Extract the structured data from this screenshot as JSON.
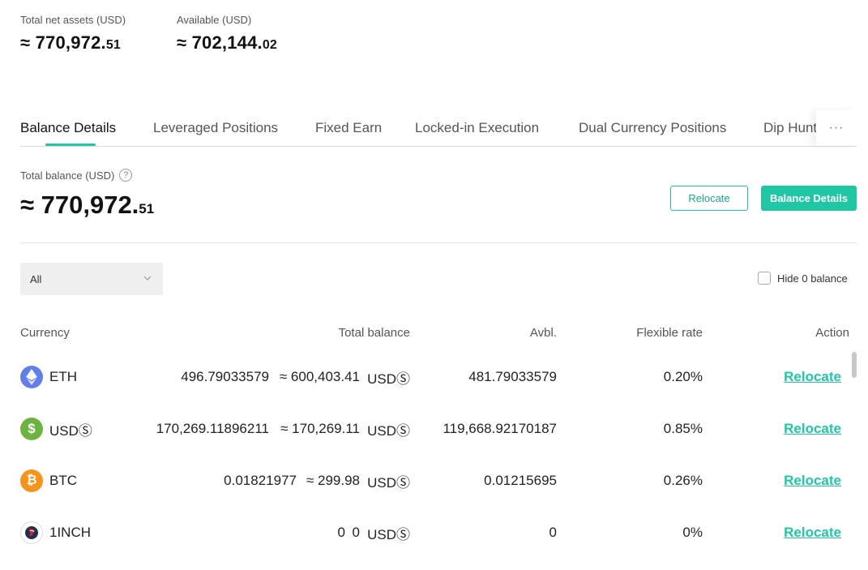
{
  "summary": {
    "net_assets_label": "Total net assets (USD)",
    "net_assets_main": "≈ 770,972.",
    "net_assets_cents": "51",
    "available_label": "Available (USD)",
    "available_main": "≈ 702,144.",
    "available_cents": "02"
  },
  "tabs": {
    "items": [
      "Balance Details",
      "Leveraged Positions",
      "Fixed Earn",
      "Locked-in Execution",
      "Dual Currency Positions",
      "Dip Hunter"
    ],
    "more": "···"
  },
  "balance": {
    "label": "Total balance (USD)",
    "help": "?",
    "main": "≈ 770,972.",
    "cents": "51"
  },
  "buttons": {
    "relocate": "Relocate",
    "balance_details": "Balance Details"
  },
  "filter": {
    "selected": "All",
    "hide_zero_label": "Hide 0 balance"
  },
  "table": {
    "headers": {
      "currency": "Currency",
      "total_balance": "Total balance",
      "avbl": "Avbl.",
      "flexible_rate": "Flexible rate",
      "action": "Action"
    },
    "rows": [
      {
        "currency": "ETH",
        "amount": "496.79033579",
        "approx": "≈ 600,403.41",
        "unit": "USDⓈ",
        "avbl": "481.79033579",
        "rate": "0.20%",
        "action": "Relocate",
        "icon": "eth-icon",
        "icon_color": "#627eea"
      },
      {
        "currency": "USDⓈ",
        "amount": "170,269.11896211",
        "approx": "≈ 170,269.11",
        "unit": "USDⓈ",
        "avbl": "119,668.92170187",
        "rate": "0.85%",
        "action": "Relocate",
        "icon": "usds-icon",
        "icon_color": "#6cb33f"
      },
      {
        "currency": "BTC",
        "amount": "0.01821977",
        "approx": "≈ 299.98",
        "unit": "USDⓈ",
        "avbl": "0.01215695",
        "rate": "0.26%",
        "action": "Relocate",
        "icon": "btc-icon",
        "icon_color": "#f7931a"
      },
      {
        "currency": "1INCH",
        "amount": "0",
        "approx": "0",
        "unit": "USDⓈ",
        "avbl": "0",
        "rate": "0%",
        "action": "Relocate",
        "icon": "1inch-icon",
        "icon_color": "#1b314f"
      }
    ]
  },
  "colors": {
    "accent": "#1fc7a5",
    "text": "#121212",
    "muted": "#555555"
  }
}
